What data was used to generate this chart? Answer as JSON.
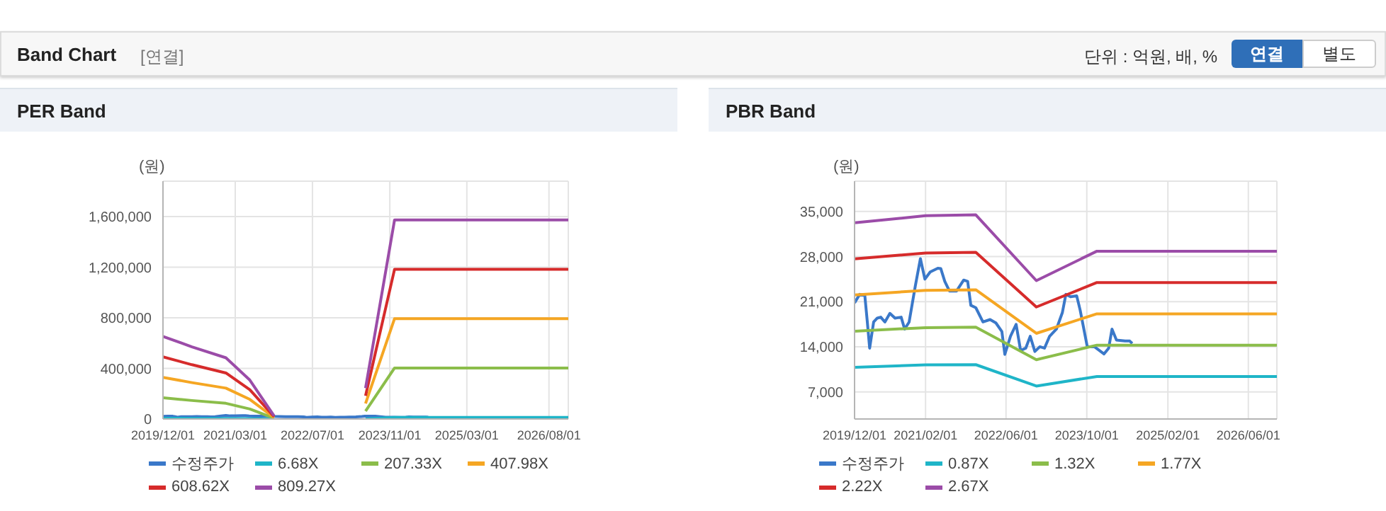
{
  "chart_data": [
    {
      "type": "line",
      "title": "PER Band",
      "ylabel": "(원)",
      "annotations": [
        "Band Chart",
        "[연결]",
        "단위 : 억원, 배, %",
        "연결",
        "별도"
      ],
      "xlim": [
        "2019-12-01",
        "2026-12-01"
      ],
      "xticks": [
        {
          "value": "2019-12-01",
          "label": "2019/12/01"
        },
        {
          "value": "2021-03-01",
          "label": "2021/03/01"
        },
        {
          "value": "2022-07-01",
          "label": "2022/07/01"
        },
        {
          "value": "2023-11-01",
          "label": "2023/11/01"
        },
        {
          "value": "2025-03-01",
          "label": "2025/03/01"
        },
        {
          "value": "2026-08-01",
          "label": "2026/08/01"
        }
      ],
      "ylim": [
        0,
        1880000
      ],
      "yticks": [
        0,
        {
          "value": 400000,
          "label": "400,000"
        },
        {
          "value": 800000,
          "label": "800,000"
        },
        {
          "value": 1200000,
          "label": "1,200,000"
        },
        {
          "value": 1600000,
          "label": "1,600,000"
        }
      ],
      "grid": true,
      "legend": "bottom",
      "series": [
        {
          "name": "수정주가",
          "color": "#3a78c9",
          "x": [
            "2019-12-01",
            "2020-01-01",
            "2020-02-01",
            "2020-02-16",
            "2020-03-01",
            "2020-03-25",
            "2020-04-16",
            "2020-05-07",
            "2020-06-01",
            "2020-07-01",
            "2020-08-01",
            "2020-09-07",
            "2020-09-28",
            "2020-10-25",
            "2020-12-01",
            "2021-01-01",
            "2021-01-28",
            "2021-03-01",
            "2021-04-16",
            "2021-05-04",
            "2021-05-28",
            "2021-06-25",
            "2021-08-07",
            "2021-09-19",
            "2021-10-13",
            "2021-11-01",
            "2021-12-01",
            "2022-01-13",
            "2022-02-25",
            "2022-04-01",
            "2022-05-07",
            "2022-05-25",
            "2022-06-28",
            "2022-08-01",
            "2022-08-28",
            "2022-09-28",
            "2022-10-25",
            "2022-11-22",
            "2022-12-22",
            "2023-01-19",
            "2023-02-19",
            "2023-04-01",
            "2023-05-07",
            "2023-05-28",
            "2023-06-25",
            "2023-08-01",
            "2023-08-22",
            "2023-10-04",
            "2023-11-16",
            "2024-01-13",
            "2024-02-10",
            "2024-03-01",
            "2024-03-28",
            "2024-05-19",
            "2024-06-16",
            "2024-07-01"
          ],
          "values": [
            20810,
            22140,
            21920,
            17850,
            13790,
            17850,
            18450,
            18600,
            17850,
            19180,
            18450,
            18600,
            16750,
            17850,
            23400,
            27680,
            24500,
            25610,
            26200,
            26130,
            24140,
            22660,
            22660,
            24360,
            24140,
            20440,
            20070,
            17850,
            18230,
            17710,
            16380,
            12830,
            15640,
            17490,
            13420,
            13790,
            15640,
            13270,
            14010,
            13790,
            15640,
            16750,
            19330,
            22140,
            21770,
            21920,
            19700,
            14010,
            14010,
            12900,
            13790,
            16750,
            15050,
            14900,
            14900,
            14530
          ]
        },
        {
          "name": "6.68X",
          "color": "#1fb5c8",
          "x": [
            "2019-12-01",
            "2020-06-01",
            "2021-01-01",
            "2021-06-01",
            "2021-11-01",
            "2022-08-01",
            "2023-06-01",
            "2023-12-01",
            "2026-12-01"
          ],
          "values": [
            5390,
            4710,
            3990,
            2540,
            200,
            null,
            2010,
            12990,
            12990
          ]
        },
        {
          "name": "207.33X",
          "color": "#8bbd4a",
          "x": [
            "2019-12-01",
            "2020-06-01",
            "2021-01-01",
            "2021-06-01",
            "2021-11-01",
            "2022-08-01",
            "2023-06-01",
            "2023-12-01",
            "2026-12-01"
          ],
          "values": [
            167300,
            146200,
            124000,
            78800,
            6220,
            null,
            62400,
            403200,
            403200
          ]
        },
        {
          "name": "407.98X",
          "color": "#f5a623",
          "x": [
            "2019-12-01",
            "2020-06-01",
            "2021-01-01",
            "2021-06-01",
            "2021-11-01",
            "2022-08-01",
            "2023-06-01",
            "2023-12-01",
            "2026-12-01"
          ],
          "values": [
            329200,
            287600,
            244000,
            155000,
            12240,
            null,
            122800,
            793500,
            793500
          ]
        },
        {
          "name": "608.62X",
          "color": "#d62b2b",
          "x": [
            "2019-12-01",
            "2020-06-01",
            "2021-01-01",
            "2021-06-01",
            "2021-11-01",
            "2022-08-01",
            "2023-06-01",
            "2023-12-01",
            "2026-12-01"
          ],
          "values": [
            491200,
            429100,
            364000,
            231300,
            18260,
            null,
            183200,
            1183800,
            1183800
          ]
        },
        {
          "name": "809.27X",
          "color": "#9b4ca8",
          "x": [
            "2019-12-01",
            "2020-06-01",
            "2021-01-01",
            "2021-06-01",
            "2021-11-01",
            "2022-08-01",
            "2023-06-01",
            "2023-12-01",
            "2026-12-01"
          ],
          "values": [
            653000,
            570500,
            484000,
            307500,
            24280,
            null,
            243600,
            1574000,
            1574000
          ]
        }
      ]
    },
    {
      "type": "line",
      "title": "PBR Band",
      "ylabel": "(원)",
      "xlim": [
        "2019-12-01",
        "2026-11-20"
      ],
      "xticks": [
        {
          "value": "2019-12-01",
          "label": "2019/12/01"
        },
        {
          "value": "2021-02-01",
          "label": "2021/02/01"
        },
        {
          "value": "2022-06-01",
          "label": "2022/06/01"
        },
        {
          "value": "2023-10-01",
          "label": "2023/10/01"
        },
        {
          "value": "2025-02-01",
          "label": "2025/02/01"
        },
        {
          "value": "2026-06-01",
          "label": "2026/06/01"
        }
      ],
      "ylim": [
        2800,
        39700
      ],
      "yticks": [
        {
          "value": 7000,
          "label": "7,000"
        },
        {
          "value": 14000,
          "label": "14,000"
        },
        {
          "value": 21000,
          "label": "21,000"
        },
        {
          "value": 28000,
          "label": "28,000"
        },
        {
          "value": 35000,
          "label": "35,000"
        }
      ],
      "grid": true,
      "legend": "bottom",
      "series": [
        {
          "name": "수정주가",
          "color": "#3a78c9",
          "x": [
            "2019-12-01",
            "2020-01-01",
            "2020-02-01",
            "2020-02-16",
            "2020-03-01",
            "2020-03-25",
            "2020-04-16",
            "2020-05-07",
            "2020-06-01",
            "2020-07-01",
            "2020-08-01",
            "2020-09-07",
            "2020-09-28",
            "2020-10-25",
            "2020-12-01",
            "2021-01-01",
            "2021-01-28",
            "2021-03-01",
            "2021-04-16",
            "2021-05-04",
            "2021-05-28",
            "2021-06-25",
            "2021-08-07",
            "2021-09-19",
            "2021-10-13",
            "2021-11-01",
            "2021-12-01",
            "2022-01-13",
            "2022-02-25",
            "2022-04-01",
            "2022-05-07",
            "2022-05-25",
            "2022-06-28",
            "2022-08-01",
            "2022-08-28",
            "2022-09-28",
            "2022-10-25",
            "2022-11-22",
            "2022-12-22",
            "2023-01-19",
            "2023-02-19",
            "2023-04-01",
            "2023-05-07",
            "2023-05-28",
            "2023-06-25",
            "2023-08-01",
            "2023-08-22",
            "2023-10-04",
            "2023-11-16",
            "2024-01-13",
            "2024-02-10",
            "2024-03-01",
            "2024-03-28",
            "2024-05-19",
            "2024-06-16",
            "2024-07-01"
          ],
          "values": [
            20810,
            22140,
            21920,
            17850,
            13790,
            17850,
            18450,
            18600,
            17850,
            19180,
            18450,
            18600,
            16750,
            17850,
            23400,
            27680,
            24500,
            25610,
            26200,
            26130,
            24140,
            22660,
            22660,
            24360,
            24140,
            20440,
            20070,
            17850,
            18230,
            17710,
            16380,
            12830,
            15640,
            17490,
            13420,
            13790,
            15640,
            13270,
            14010,
            13790,
            15640,
            16750,
            19330,
            22140,
            21770,
            21920,
            19700,
            14010,
            14010,
            12900,
            13790,
            16750,
            15050,
            14900,
            14900,
            14530
          ]
        },
        {
          "name": "0.87X",
          "color": "#1fb5c8",
          "x": [
            "2019-12-01",
            "2021-02-01",
            "2021-12-01",
            "2022-12-01",
            "2023-12-01",
            "2026-11-20"
          ],
          "values": [
            10830,
            11190,
            11230,
            7910,
            9400,
            9400
          ]
        },
        {
          "name": "1.32X",
          "color": "#8bbd4a",
          "x": [
            "2019-12-01",
            "2021-02-01",
            "2021-12-01",
            "2022-12-01",
            "2023-12-01",
            "2026-11-20"
          ],
          "values": [
            16430,
            16980,
            17040,
            12000,
            14260,
            14260
          ]
        },
        {
          "name": "1.77X",
          "color": "#f5a623",
          "x": [
            "2019-12-01",
            "2021-02-01",
            "2021-12-01",
            "2022-12-01",
            "2023-12-01",
            "2026-11-20"
          ],
          "values": [
            22040,
            22760,
            22850,
            16090,
            19120,
            19120
          ]
        },
        {
          "name": "2.22X",
          "color": "#d62b2b",
          "x": [
            "2019-12-01",
            "2021-02-01",
            "2021-12-01",
            "2022-12-01",
            "2023-12-01",
            "2026-11-20"
          ],
          "values": [
            27640,
            28550,
            28660,
            20180,
            23980,
            23980
          ]
        },
        {
          "name": "2.67X",
          "color": "#9b4ca8",
          "x": [
            "2019-12-01",
            "2021-02-01",
            "2021-12-01",
            "2022-12-01",
            "2023-12-01",
            "2026-11-20"
          ],
          "values": [
            33240,
            34340,
            34470,
            24270,
            28840,
            28840
          ]
        }
      ]
    }
  ]
}
